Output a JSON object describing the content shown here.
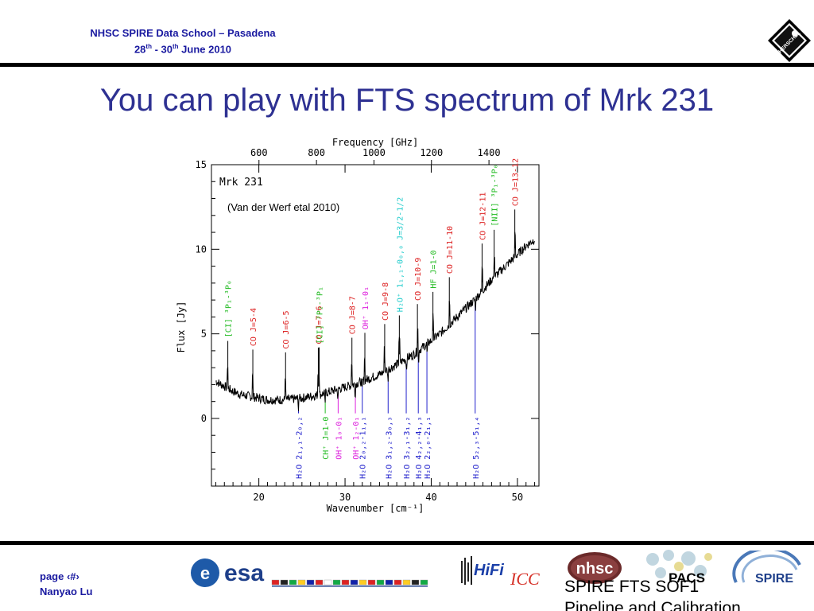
{
  "header": {
    "event_line": "NHSC SPIRE Data School – Pasadena",
    "date_part1": "28",
    "date_sup1": "th",
    "date_part2": " - 30",
    "date_sup2": "th",
    "date_part3": " June 2010",
    "logo_text": "HERSCHEL"
  },
  "slide": {
    "title": "You can play with FTS spectrum of Mrk 231"
  },
  "chart_data": {
    "type": "line",
    "source_label": "Mrk 231",
    "annotation": "(Van der Werf etal 2010)",
    "xlabel": "Wavenumber [cm⁻¹]",
    "ylabel": "Flux [Jy]",
    "top_xlabel": "Frequency [GHz]",
    "xlim": [
      14.5,
      52.5
    ],
    "ylim": [
      -4,
      15
    ],
    "x_ticks": [
      "20",
      "30",
      "40",
      "50"
    ],
    "x_tick_values": [
      20,
      30,
      40,
      50
    ],
    "y_ticks": [
      "0",
      "5",
      "10",
      "15"
    ],
    "y_tick_values": [
      0,
      5,
      10,
      15
    ],
    "top_ticks": [
      "600",
      "800",
      "1000",
      "1200",
      "1400"
    ],
    "top_tick_values": [
      600,
      800,
      1000,
      1200,
      1400
    ],
    "spectrum": {
      "x": [
        15,
        16,
        17,
        18,
        19,
        20,
        21,
        22,
        23,
        24,
        25,
        26,
        27,
        28,
        29,
        30,
        31,
        32,
        33,
        34,
        35,
        36,
        37,
        38,
        39,
        40,
        41,
        42,
        43,
        44,
        45,
        46,
        47,
        48,
        49,
        50,
        51,
        52
      ],
      "y": [
        2.2,
        1.9,
        1.6,
        1.4,
        1.3,
        1.2,
        1.1,
        1.1,
        1.1,
        1.15,
        1.2,
        1.3,
        1.4,
        1.55,
        1.7,
        1.85,
        2.0,
        2.2,
        2.4,
        2.6,
        2.9,
        3.2,
        3.5,
        3.8,
        4.2,
        4.6,
        5.0,
        5.5,
        6.0,
        6.5,
        7.0,
        7.6,
        8.2,
        8.7,
        9.2,
        9.7,
        10.2,
        10.6
      ]
    },
    "emission_lines": [
      {
        "x": 16.4,
        "label": "[CI] ³P₁-³P₀",
        "color": "#22bb22"
      },
      {
        "x": 19.3,
        "label": "CO J=5-4",
        "color": "#dd2222"
      },
      {
        "x": 23.1,
        "label": "CO J=6-5",
        "color": "#dd2222"
      },
      {
        "x": 26.9,
        "label": "CO J=7-6",
        "color": "#dd2222"
      },
      {
        "x": 27.0,
        "label": "[CI] ³P₂-³P₁",
        "color": "#22bb22"
      },
      {
        "x": 30.8,
        "label": "CO J=8-7",
        "color": "#dd2222"
      },
      {
        "x": 32.3,
        "label": "OH⁺ 1₁-0₁",
        "color": "#dd22dd"
      },
      {
        "x": 34.6,
        "label": "CO J=9-8",
        "color": "#dd2222"
      },
      {
        "x": 36.3,
        "label": "H₂O⁺ 1₁,₁-0₀,₀ J=3/2-1/2",
        "color": "#22cccc"
      },
      {
        "x": 38.4,
        "label": "CO J=10-9",
        "color": "#dd2222"
      },
      {
        "x": 40.2,
        "label": "HF J=1-0",
        "color": "#22bb22"
      },
      {
        "x": 42.1,
        "label": "CO J=11-10",
        "color": "#dd2222"
      },
      {
        "x": 45.9,
        "label": "CO J=12-11",
        "color": "#dd2222"
      },
      {
        "x": 47.3,
        "label": "[NII] ³P₁-³P₀",
        "color": "#22bb22"
      },
      {
        "x": 49.7,
        "label": "CO J=13-12",
        "color": "#dd2222"
      }
    ],
    "absorption_lines": [
      {
        "x": 24.6,
        "label": "H₂O 2₁,₁-2₀,₂",
        "color": "#2222cc"
      },
      {
        "x": 27.7,
        "label": "CH⁺ J=1-0",
        "color": "#22bb22"
      },
      {
        "x": 29.2,
        "label": "OH⁺ 1₀-0₁",
        "color": "#dd22dd"
      },
      {
        "x": 31.2,
        "label": "OH⁺ 1₂-0₁",
        "color": "#dd22dd"
      },
      {
        "x": 32.0,
        "label": "H₂O 2₀,₂-1₁,₁",
        "color": "#2222cc"
      },
      {
        "x": 35.0,
        "label": "H₂O 3₁,₂-3₀,₃",
        "color": "#2222cc"
      },
      {
        "x": 37.1,
        "label": "H₂O 3₂,₁-3₁,₂",
        "color": "#2222cc"
      },
      {
        "x": 38.5,
        "label": "H₂O 4₂,₂-4₁,₃",
        "color": "#2222cc"
      },
      {
        "x": 39.5,
        "label": "H₂O 2₂,₀-2₁,₁",
        "color": "#2222cc"
      },
      {
        "x": 45.1,
        "label": "H₂O 5₂,₃-5₁,₄",
        "color": "#2222cc"
      }
    ]
  },
  "footer": {
    "page_label": "page ‹#›",
    "author": "Nanyao Lu",
    "esa_text": "esa",
    "hifi_text": "HiFi",
    "icc_text": "ICC",
    "nhsc_text": "nhsc",
    "pacs_text": "PACS",
    "spire_text": "SPIRE",
    "doc_line1": "SPIRE FTS SOF1",
    "doc_line2": "Pipeline and Calibration"
  },
  "colors": {
    "header_text": "#1a1aa0",
    "title": "#2e3192",
    "rule": "#000000"
  }
}
